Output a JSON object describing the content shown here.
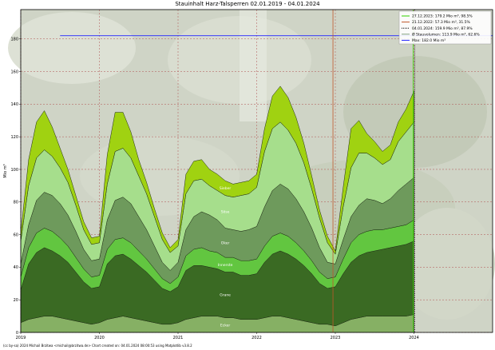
{
  "chart_data": {
    "type": "area",
    "title": "Stauinhalt Harz-Talsperren 02.01.2019 - 04.01.2024",
    "ylabel": "Mio m³",
    "xlabel": "",
    "xlim": [
      2019.0,
      2025.0
    ],
    "ylim": [
      0,
      198
    ],
    "x_ticks": [
      "2019",
      "2020",
      "2021",
      "2022",
      "2023",
      "2024"
    ],
    "y_ticks": [
      0,
      20,
      40,
      60,
      80,
      100,
      120,
      140,
      160,
      180
    ],
    "grid": true,
    "legend_position": "top-right",
    "x": [
      2019.0,
      2019.1,
      2019.2,
      2019.3,
      2019.4,
      2019.5,
      2019.6,
      2019.7,
      2019.8,
      2019.9,
      2020.0,
      2020.1,
      2020.2,
      2020.3,
      2020.4,
      2020.5,
      2020.6,
      2020.7,
      2020.8,
      2020.9,
      2021.0,
      2021.1,
      2021.2,
      2021.3,
      2021.4,
      2021.5,
      2021.6,
      2021.7,
      2021.8,
      2021.9,
      2022.0,
      2022.1,
      2022.2,
      2022.3,
      2022.4,
      2022.5,
      2022.6,
      2022.7,
      2022.8,
      2022.9,
      2023.0,
      2023.1,
      2023.2,
      2023.3,
      2023.4,
      2023.5,
      2023.6,
      2023.7,
      2023.8,
      2023.9,
      2024.0
    ],
    "series": [
      {
        "name": "Ecker",
        "color": "#86b064",
        "values": [
          6,
          8,
          9,
          10,
          10,
          9,
          8,
          7,
          6,
          5,
          6,
          8,
          9,
          10,
          9,
          8,
          7,
          6,
          5,
          5,
          6,
          8,
          9,
          10,
          10,
          10,
          9,
          9,
          8,
          8,
          8,
          9,
          10,
          10,
          9,
          8,
          7,
          6,
          5,
          5,
          4,
          6,
          8,
          9,
          10,
          10,
          10,
          10,
          10,
          10,
          11
        ]
      },
      {
        "name": "Grane",
        "color": "#3a6a23",
        "values": [
          20,
          34,
          40,
          42,
          40,
          38,
          35,
          30,
          25,
          22,
          22,
          34,
          38,
          38,
          36,
          33,
          30,
          26,
          22,
          20,
          22,
          30,
          32,
          31,
          30,
          29,
          28,
          28,
          27,
          27,
          28,
          34,
          38,
          40,
          39,
          37,
          34,
          30,
          25,
          22,
          24,
          30,
          35,
          38,
          39,
          40,
          41,
          42,
          43,
          44,
          45
        ]
      },
      {
        "name": "Innerste",
        "color": "#62c640",
        "values": [
          8,
          10,
          12,
          12,
          12,
          11,
          10,
          9,
          8,
          7,
          7,
          9,
          10,
          10,
          10,
          9,
          8,
          7,
          6,
          5,
          6,
          9,
          10,
          11,
          10,
          10,
          9,
          9,
          9,
          9,
          9,
          10,
          11,
          11,
          11,
          10,
          9,
          8,
          7,
          6,
          6,
          9,
          12,
          13,
          13,
          13,
          12,
          12,
          12,
          12,
          13
        ]
      },
      {
        "name": "Oker",
        "color": "#6e9a5c",
        "values": [
          8,
          14,
          20,
          22,
          22,
          21,
          19,
          16,
          12,
          10,
          10,
          18,
          24,
          25,
          24,
          21,
          18,
          14,
          10,
          8,
          9,
          16,
          20,
          22,
          22,
          20,
          18,
          17,
          18,
          19,
          20,
          24,
          28,
          30,
          29,
          27,
          24,
          20,
          15,
          10,
          8,
          12,
          16,
          18,
          20,
          18,
          16,
          18,
          22,
          25,
          26
        ]
      },
      {
        "name": "Söse",
        "color": "#a6de8c",
        "values": [
          14,
          24,
          26,
          26,
          24,
          22,
          20,
          16,
          12,
          10,
          10,
          22,
          30,
          30,
          28,
          25,
          22,
          18,
          14,
          11,
          10,
          22,
          22,
          20,
          18,
          18,
          20,
          20,
          22,
          22,
          24,
          34,
          38,
          38,
          36,
          34,
          30,
          24,
          18,
          12,
          6,
          20,
          30,
          32,
          28,
          26,
          24,
          24,
          30,
          32,
          34
        ]
      },
      {
        "name": "Sieber",
        "color": "#a0d211",
        "values": [
          5,
          16,
          22,
          24,
          18,
          12,
          8,
          6,
          5,
          4,
          4,
          18,
          24,
          22,
          16,
          10,
          7,
          5,
          4,
          3,
          4,
          12,
          12,
          12,
          10,
          10,
          9,
          8,
          8,
          8,
          8,
          14,
          20,
          22,
          20,
          16,
          12,
          8,
          5,
          4,
          2,
          12,
          24,
          20,
          12,
          10,
          8,
          9,
          12,
          14,
          19
        ]
      }
    ],
    "max_line": 182.0,
    "markers": [
      {
        "date": "27.12.2023",
        "x": 2023.99,
        "value": 179.2,
        "color": "#31d000",
        "style": "solid"
      },
      {
        "date": "21.12.2022",
        "x": 2022.97,
        "value": 57.3,
        "color": "#c0572a",
        "style": "solid"
      },
      {
        "date": "04.01.2024",
        "x": 2024.01,
        "value": 159.9,
        "color": "#000000",
        "style": "dotted"
      }
    ],
    "legend": [
      "27.12.2023: 179.2 Mio m³, 98.5%",
      "21.12.2022: 57.3 Mio m³, 31.5%",
      "04.01.2024: 159.9 Mio m³, 87.9%",
      "Ø Stauvolumen: 113.9 Mio m³, 62.6%",
      "Max: 182.0 Mio m³"
    ],
    "legend_colors": [
      "#31d000",
      "#c0572a",
      "#000000",
      "#7f9f7f",
      "#2424ff"
    ]
  },
  "footer": "(cc by-sa) 2024 Michail Brzitwa <michail@brzitwa.de>   Chart created on: 04.01.2024 08:00:53 using Matplotlib v3.8.2"
}
